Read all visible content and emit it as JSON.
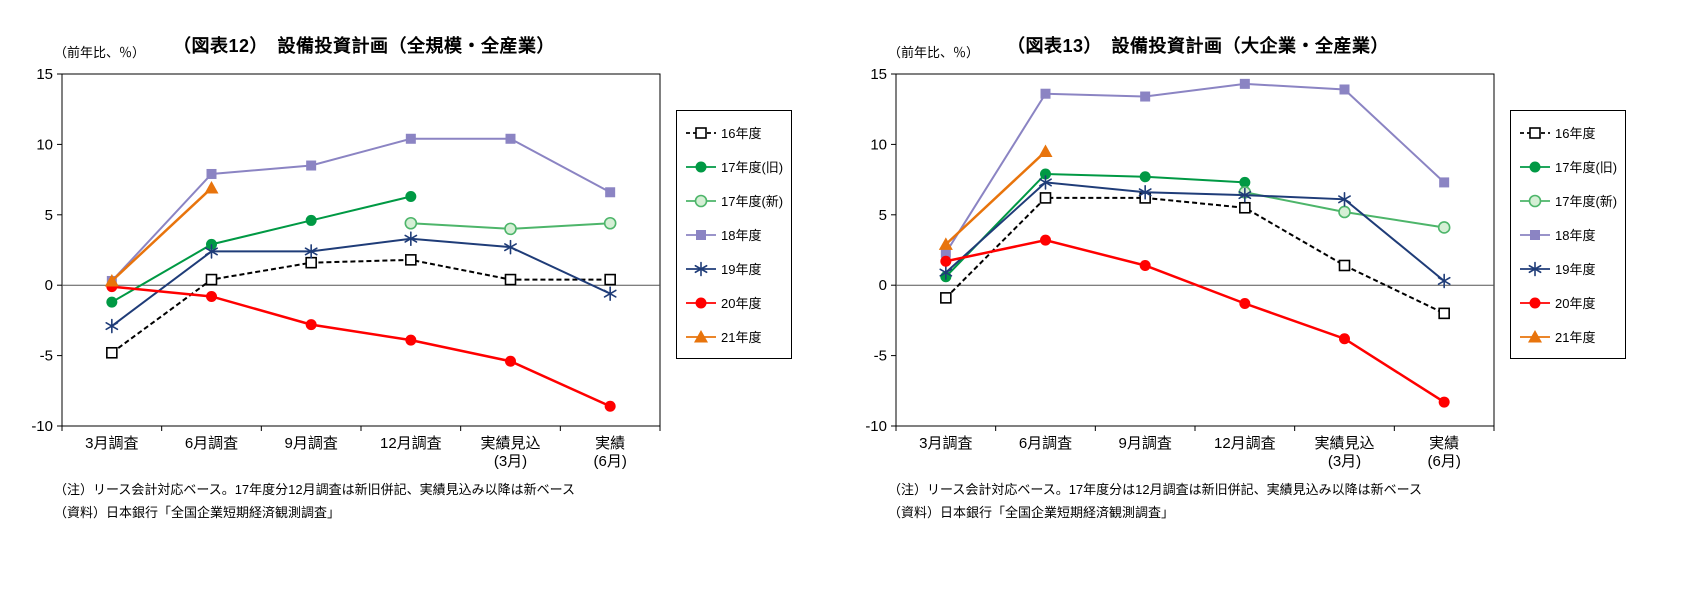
{
  "chart_data": [
    {
      "type": "line",
      "title": "（図表12）　設備投資計画（全規模・全産業）",
      "unit_label": "（前年比、％）",
      "categories": [
        "3月調査",
        "6月調査",
        "9月調査",
        "12月調査",
        "実績見込\n(3月)",
        "実績\n(6月)"
      ],
      "y_ticks": [
        15,
        10,
        5,
        0,
        -5,
        -10
      ],
      "ylim": [
        -10,
        15
      ],
      "grid": false,
      "legend_position": "right",
      "series": [
        {
          "name": "16年度",
          "color": "#000000",
          "dash": "5 3",
          "marker": "square-open",
          "values": [
            -4.8,
            0.4,
            1.6,
            1.8,
            0.4,
            0.4
          ]
        },
        {
          "name": "17年度(旧)",
          "color": "#009944",
          "marker": "circle-filled",
          "values": [
            -1.2,
            2.9,
            4.6,
            6.3,
            null,
            null
          ]
        },
        {
          "name": "17年度(新)",
          "color": "#4DB56A",
          "marker": "circle-open",
          "marker_fill": "#D5EFD5",
          "values": [
            null,
            null,
            null,
            4.4,
            4.0,
            4.4
          ]
        },
        {
          "name": "18年度",
          "color": "#8B84C3",
          "marker": "square-filled",
          "values": [
            0.3,
            7.9,
            8.5,
            10.4,
            10.4,
            6.6
          ]
        },
        {
          "name": "19年度",
          "color": "#1F3C78",
          "marker": "asterisk",
          "values": [
            -2.9,
            2.4,
            2.4,
            3.3,
            2.7,
            -0.6
          ]
        },
        {
          "name": "20年度",
          "color": "#FF0000",
          "width": 2.5,
          "marker": "circle-filled",
          "values": [
            -0.1,
            -0.8,
            -2.8,
            -3.9,
            -5.4,
            -8.6
          ]
        },
        {
          "name": "21年度",
          "color": "#E8740C",
          "width": 2.5,
          "marker": "triangle-filled",
          "values": [
            0.3,
            6.9,
            null,
            null,
            null,
            null
          ]
        }
      ],
      "note": "（注）リース会計対応ベース。17年度分12月調査は新旧併記、実績見込み以降は新ベース",
      "source": "（資料）日本銀行「全国企業短期経済観測調査」"
    },
    {
      "type": "line",
      "title": "（図表13）　設備投資計画（大企業・全産業）",
      "unit_label": "（前年比、％）",
      "categories": [
        "3月調査",
        "6月調査",
        "9月調査",
        "12月調査",
        "実績見込\n(3月)",
        "実績\n(6月)"
      ],
      "y_ticks": [
        15,
        10,
        5,
        0,
        -5,
        -10
      ],
      "ylim": [
        -10,
        15
      ],
      "grid": false,
      "legend_position": "right",
      "series": [
        {
          "name": "16年度",
          "color": "#000000",
          "dash": "5 3",
          "marker": "square-open",
          "values": [
            -0.9,
            6.2,
            6.2,
            5.5,
            1.4,
            -2.0
          ]
        },
        {
          "name": "17年度(旧)",
          "color": "#009944",
          "marker": "circle-filled",
          "values": [
            0.6,
            7.9,
            7.7,
            7.3,
            null,
            null
          ]
        },
        {
          "name": "17年度(新)",
          "color": "#4DB56A",
          "marker": "circle-open",
          "marker_fill": "#D5EFD5",
          "values": [
            null,
            null,
            null,
            6.6,
            5.2,
            4.1
          ]
        },
        {
          "name": "18年度",
          "color": "#8B84C3",
          "marker": "square-filled",
          "values": [
            2.3,
            13.6,
            13.4,
            14.3,
            13.9,
            7.3
          ]
        },
        {
          "name": "19年度",
          "color": "#1F3C78",
          "marker": "asterisk",
          "values": [
            0.9,
            7.3,
            6.6,
            6.4,
            6.1,
            0.3
          ]
        },
        {
          "name": "20年度",
          "color": "#FF0000",
          "width": 2.5,
          "marker": "circle-filled",
          "values": [
            1.7,
            3.2,
            1.4,
            -1.3,
            -3.8,
            -8.3
          ]
        },
        {
          "name": "21年度",
          "color": "#E8740C",
          "width": 2.5,
          "marker": "triangle-filled",
          "values": [
            2.9,
            9.5,
            null,
            null,
            null,
            null
          ]
        }
      ],
      "note": "（注）リース会計対応ベース。17年度分は12月調査は新旧併記、実績見込み以降は新ベース",
      "source": "（資料）日本銀行「全国企業短期経済観測調査」"
    }
  ]
}
